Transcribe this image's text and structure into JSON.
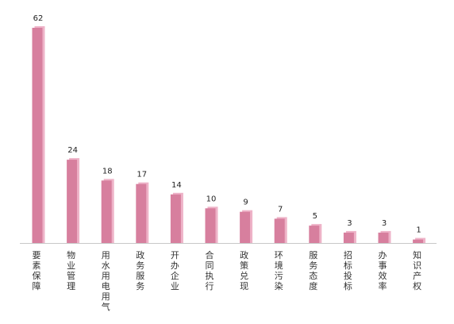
{
  "chart_data": {
    "type": "bar",
    "categories": [
      "要素保障",
      "物业管理",
      "用水用电用气",
      "政务服务",
      "开办企业",
      "合同执行",
      "政策兑现",
      "环境污染",
      "服务态度",
      "招标投标",
      "办事效率",
      "知识产权"
    ],
    "values": [
      62,
      24,
      18,
      17,
      14,
      10,
      9,
      7,
      5,
      3,
      3,
      1
    ],
    "data_labels": [
      "62",
      "24",
      "18",
      "17",
      "14",
      "10",
      "9",
      "7",
      "5",
      "3",
      "3",
      "1"
    ],
    "ylim": [
      0,
      62
    ],
    "grid": false,
    "legend": "none",
    "colors": {
      "bar_front": "#d77f9e",
      "bar_side": "#eeb3c8",
      "axis": "#c8c8c8"
    }
  }
}
